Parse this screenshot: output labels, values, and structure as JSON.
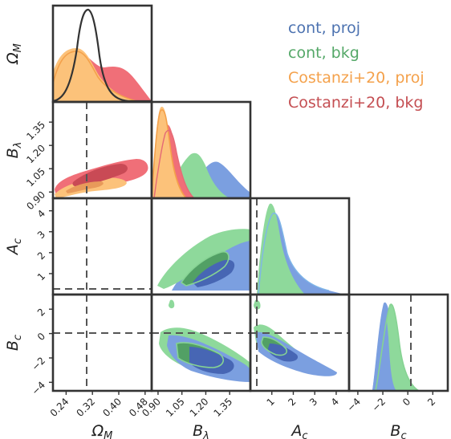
{
  "chart_data": {
    "type": "corner",
    "parameters": [
      {
        "label": "Ω",
        "label_sub": "M",
        "ticks": [
          0.24,
          0.32,
          0.4,
          0.48
        ],
        "range": [
          0.2,
          0.5
        ],
        "truth": 0.28
      },
      {
        "label": "B",
        "label_sub": "λ",
        "ticks": [
          0.9,
          1.05,
          1.2,
          1.35
        ],
        "range": [
          0.86,
          1.48
        ],
        "truth": null
      },
      {
        "label": "A",
        "label_sub": "c",
        "ticks": [
          1,
          2,
          3,
          4
        ],
        "range": [
          0,
          4.6
        ],
        "truth": 0
      },
      {
        "label": "B",
        "label_sub": "c",
        "ticks": [
          -4,
          -2,
          0,
          2
        ],
        "range": [
          -4.7,
          3.2
        ],
        "truth": 0
      }
    ],
    "series": [
      {
        "name": "cont, proj",
        "color": "#4c72b0",
        "fill": "#7b9fe0"
      },
      {
        "name": "cont, bkg",
        "color": "#55a868",
        "fill": "#8ed99b"
      },
      {
        "name": "Costanzi+20, proj",
        "color": "#f4a14b",
        "fill": "#fcc27a"
      },
      {
        "name": "Costanzi+20, bkg",
        "color": "#c44e52",
        "fill": "#f06f78"
      }
    ],
    "marginals": {
      "om_prior_peak": 0.28,
      "om_cost_proj_peak": 0.265,
      "om_cost_bkg_peak": 0.33,
      "bl_cost_proj_peak": 0.92,
      "bl_cost_bkg_peak": 0.95,
      "bl_cont_bkg_peak": 1.12,
      "bl_cont_proj_peak": 1.22,
      "ac_cont_bkg_peak": 0.7,
      "ac_cont_proj_peak": 1.0,
      "bc_cont_proj_peak": -1.8,
      "bc_cont_bkg_peak": -1.5
    },
    "grid": false,
    "legend_position": "top-right"
  }
}
